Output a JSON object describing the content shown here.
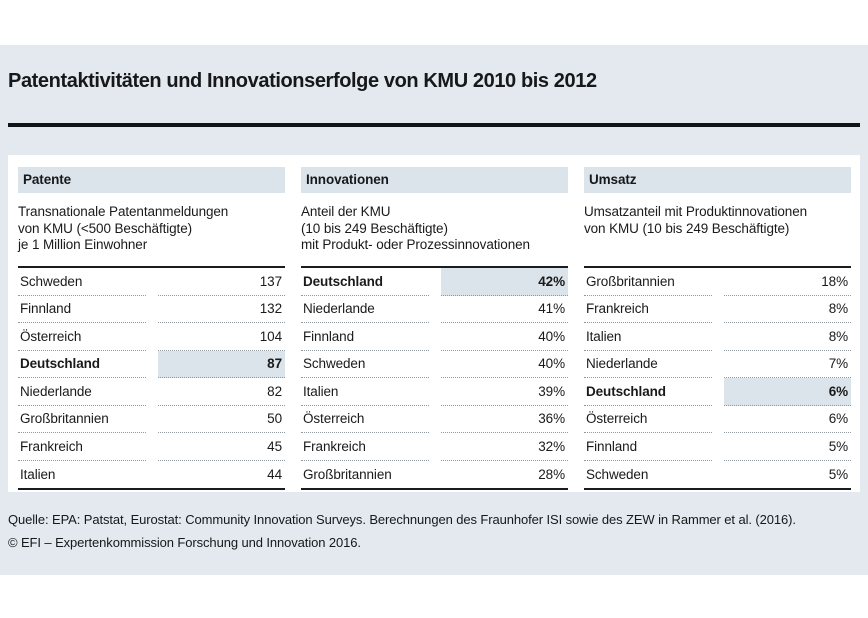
{
  "title": "Patentaktivitäten und Innovationserfolge von KMU 2010 bis 2012",
  "colors": {
    "background_band": "#e3e9ee",
    "header_bar": "#dbe4ea",
    "highlight": "#dbe4ea",
    "text": "#1a1a1a",
    "rule": "#111416"
  },
  "columns": [
    {
      "header": "Patente",
      "description": "Transnationale Patentanmeldungen\nvon KMU (<500 Beschäftigte)\nje 1 Million Einwohner",
      "rows": [
        {
          "label": "Schweden",
          "value": "137",
          "highlight": false
        },
        {
          "label": "Finnland",
          "value": "132",
          "highlight": false
        },
        {
          "label": "Österreich",
          "value": "104",
          "highlight": false
        },
        {
          "label": "Deutschland",
          "value": "87",
          "highlight": true
        },
        {
          "label": "Niederlande",
          "value": "82",
          "highlight": false
        },
        {
          "label": "Großbritannien",
          "value": "50",
          "highlight": false
        },
        {
          "label": "Frankreich",
          "value": "45",
          "highlight": false
        },
        {
          "label": "Italien",
          "value": "44",
          "highlight": false
        }
      ]
    },
    {
      "header": "Innovationen",
      "description": "Anteil der KMU\n(10 bis 249 Beschäftigte)\nmit Produkt- oder Prozessinnovationen",
      "rows": [
        {
          "label": "Deutschland",
          "value": "42%",
          "highlight": true
        },
        {
          "label": "Niederlande",
          "value": "41%",
          "highlight": false
        },
        {
          "label": "Finnland",
          "value": "40%",
          "highlight": false
        },
        {
          "label": "Schweden",
          "value": "40%",
          "highlight": false
        },
        {
          "label": "Italien",
          "value": "39%",
          "highlight": false
        },
        {
          "label": "Österreich",
          "value": "36%",
          "highlight": false
        },
        {
          "label": "Frankreich",
          "value": "32%",
          "highlight": false
        },
        {
          "label": "Großbritannien",
          "value": "28%",
          "highlight": false
        }
      ]
    },
    {
      "header": "Umsatz",
      "description": "Umsatzanteil mit Produktinnovationen\nvon KMU (10 bis 249 Beschäftigte)",
      "rows": [
        {
          "label": "Großbritannien",
          "value": "18%",
          "highlight": false
        },
        {
          "label": "Frankreich",
          "value": "8%",
          "highlight": false
        },
        {
          "label": "Italien",
          "value": "8%",
          "highlight": false
        },
        {
          "label": "Niederlande",
          "value": "7%",
          "highlight": false
        },
        {
          "label": "Deutschland",
          "value": "6%",
          "highlight": true
        },
        {
          "label": "Österreich",
          "value": "6%",
          "highlight": false
        },
        {
          "label": "Finnland",
          "value": "5%",
          "highlight": false
        },
        {
          "label": "Schweden",
          "value": "5%",
          "highlight": false
        }
      ]
    }
  ],
  "footer": {
    "source": "Quelle: EPA: Patstat, Eurostat: Community Innovation Surveys. Berechnungen des Fraunhofer ISI sowie des ZEW in Rammer et al. (2016).",
    "copyright": "© EFI – Expertenkommission Forschung und Innovation 2016."
  },
  "chart_data": [
    {
      "type": "table",
      "title": "Patente",
      "subtitle": "Transnationale Patentanmeldungen von KMU (<500 Beschäftigte) je 1 Million Einwohner",
      "categories": [
        "Schweden",
        "Finnland",
        "Österreich",
        "Deutschland",
        "Niederlande",
        "Großbritannien",
        "Frankreich",
        "Italien"
      ],
      "values": [
        137,
        132,
        104,
        87,
        82,
        50,
        45,
        44
      ],
      "highlighted_category": "Deutschland",
      "unit": "Patentanmeldungen je 1 Million Einwohner"
    },
    {
      "type": "table",
      "title": "Innovationen",
      "subtitle": "Anteil der KMU (10 bis 249 Beschäftigte) mit Produkt- oder Prozessinnovationen",
      "categories": [
        "Deutschland",
        "Niederlande",
        "Finnland",
        "Schweden",
        "Italien",
        "Österreich",
        "Frankreich",
        "Großbritannien"
      ],
      "values": [
        42,
        41,
        40,
        40,
        39,
        36,
        32,
        28
      ],
      "highlighted_category": "Deutschland",
      "unit": "%"
    },
    {
      "type": "table",
      "title": "Umsatz",
      "subtitle": "Umsatzanteil mit Produktinnovationen von KMU (10 bis 249 Beschäftigte)",
      "categories": [
        "Großbritannien",
        "Frankreich",
        "Italien",
        "Niederlande",
        "Deutschland",
        "Österreich",
        "Finnland",
        "Schweden"
      ],
      "values": [
        18,
        8,
        8,
        7,
        6,
        6,
        5,
        5
      ],
      "highlighted_category": "Deutschland",
      "unit": "%"
    }
  ]
}
